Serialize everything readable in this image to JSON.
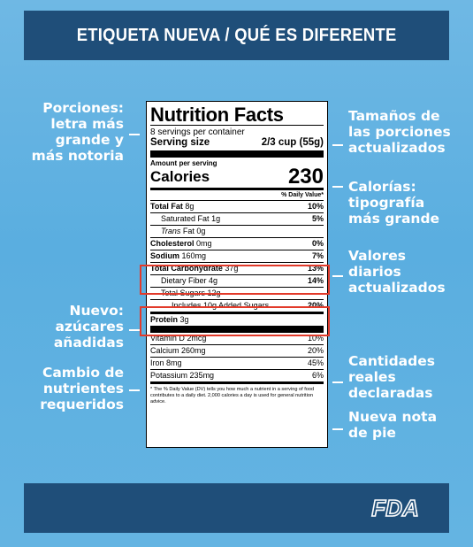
{
  "header": {
    "title": "ETIQUETA NUEVA / QUÉ ES DIFERENTE"
  },
  "callouts": {
    "left": [
      "Porciones: letra más grande y más notoria",
      "Nuevo: azúcares añadidas",
      "Cambio de nutrientes requeridos"
    ],
    "right": [
      "Tamaños de las porciones actualizados",
      "Calorías: tipografía más grande",
      "Valores diarios actualizados",
      "Cantidades reales declaradas",
      "Nueva nota de pie"
    ]
  },
  "label": {
    "title": "Nutrition Facts",
    "servings": "8 servings per container",
    "serving_size_label": "Serving size",
    "serving_size_value": "2/3 cup (55g)",
    "amount_per": "Amount per serving",
    "calories_label": "Calories",
    "calories_value": "230",
    "dv_header": "% Daily Value*",
    "nutrients": [
      {
        "name": "Total Fat",
        "amount": "8g",
        "dv": "10%"
      },
      {
        "name": "Saturated Fat",
        "amount": "1g",
        "dv": "5%"
      },
      {
        "name": "Trans",
        "amount": "Fat 0g",
        "dv": ""
      },
      {
        "name": "Cholesterol",
        "amount": "0mg",
        "dv": "0%"
      },
      {
        "name": "Sodium",
        "amount": "160mg",
        "dv": "7%"
      },
      {
        "name": "Total Carbohydrate",
        "amount": "37g",
        "dv": "13%"
      },
      {
        "name": "Dietary Fiber",
        "amount": "4g",
        "dv": "14%"
      },
      {
        "name": "Total Sugars",
        "amount": "12g",
        "dv": ""
      },
      {
        "name": "Includes 10g Added Sugars",
        "amount": "",
        "dv": "20%"
      },
      {
        "name": "Protein",
        "amount": "3g",
        "dv": ""
      }
    ],
    "vitamins": [
      {
        "name": "Vitamin D",
        "amount": "2mcg",
        "dv": "10%"
      },
      {
        "name": "Calcium",
        "amount": "260mg",
        "dv": "20%"
      },
      {
        "name": "Iron",
        "amount": "8mg",
        "dv": "45%"
      },
      {
        "name": "Potassium",
        "amount": "235mg",
        "dv": "6%"
      }
    ],
    "footnote": "* The % Daily Value (DV) tells you how much a nutrient in a serving of food contributes to a daily diet. 2,000 calories a day is used for general nutrition advice."
  },
  "footer": {
    "logo_text": "FDA"
  },
  "colors": {
    "background": "#6fb8e4",
    "banner": "#1f4e79",
    "highlight": "#e23a2a"
  }
}
